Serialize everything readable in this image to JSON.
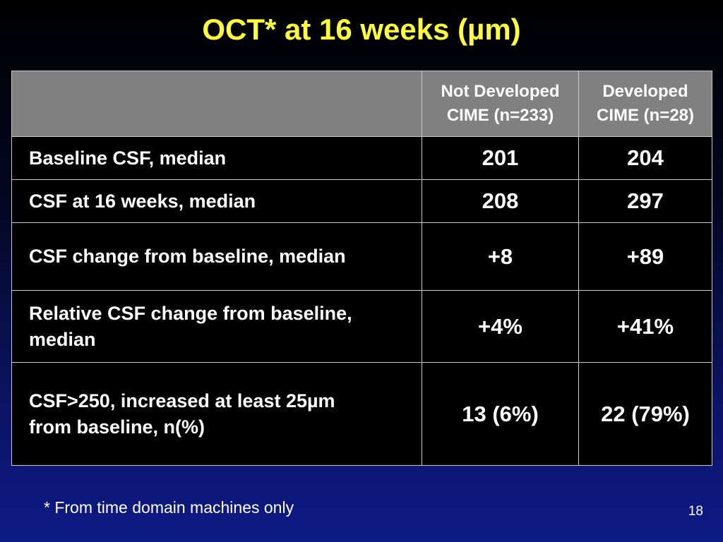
{
  "title": "OCT* at 16 weeks (µm)",
  "table": {
    "columns": [
      {
        "line1": "Not Developed",
        "line2": "CIME (n=233)"
      },
      {
        "line1": "Developed",
        "line2": "CIME (n=28)"
      }
    ],
    "rows": [
      {
        "label_lines": [
          "Baseline CSF, median"
        ],
        "not_developed": "201",
        "developed": "204"
      },
      {
        "label_lines": [
          "CSF at 16 weeks, median"
        ],
        "not_developed": "208",
        "developed": "297"
      },
      {
        "label_lines": [
          "CSF change from baseline, median"
        ],
        "not_developed": "+8",
        "developed": "+89"
      },
      {
        "label_lines": [
          "Relative CSF change from baseline,",
          "median"
        ],
        "not_developed": "+4%",
        "developed": "+41%"
      },
      {
        "label_lines": [
          "CSF>250, increased at least 25µm",
          "from baseline, n(%)"
        ],
        "not_developed": "13 (6%)",
        "developed": "22 (79%)"
      }
    ]
  },
  "footnote": "* From time domain machines only",
  "page_number": "18"
}
